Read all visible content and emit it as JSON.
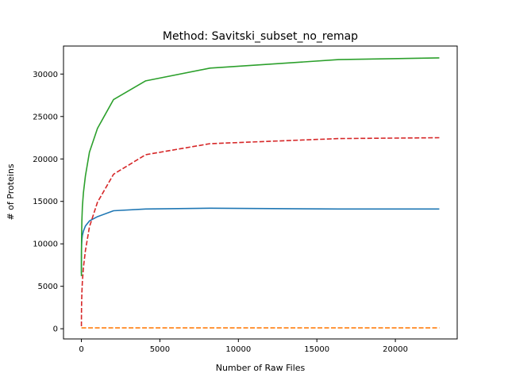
{
  "chart_data": {
    "type": "line",
    "title": "Method: Savitski_subset_no_remap",
    "xlabel": "Number of Raw Files",
    "ylabel": "# of Proteins",
    "xlim": [
      -1140,
      23940
    ],
    "ylim": [
      -1200,
      33300
    ],
    "xticks": [
      0,
      5000,
      10000,
      15000,
      20000
    ],
    "yticks": [
      0,
      5000,
      10000,
      15000,
      20000,
      25000,
      30000
    ],
    "grid": false,
    "legend": "none",
    "series": [
      {
        "color": "#1f77b4",
        "dash": "solid",
        "x": [
          1,
          2,
          4,
          8,
          16,
          32,
          64,
          128,
          256,
          512,
          1024,
          2048,
          4096,
          8192,
          16384,
          22800
        ],
        "y": [
          6500,
          7500,
          8400,
          9200,
          9900,
          10500,
          11000,
          11500,
          12100,
          12700,
          13200,
          13900,
          14100,
          14200,
          14100,
          14100
        ]
      },
      {
        "color": "#ff7f0e",
        "dash": "dashed",
        "x": [
          1,
          2,
          4,
          8,
          16,
          32,
          64,
          128,
          256,
          512,
          1024,
          2048,
          4096,
          8192,
          16384,
          22800
        ],
        "y": [
          100,
          100,
          100,
          100,
          100,
          100,
          100,
          100,
          100,
          100,
          100,
          100,
          100,
          100,
          100,
          100
        ]
      },
      {
        "color": "#2ca02c",
        "dash": "solid",
        "x": [
          1,
          2,
          4,
          8,
          16,
          32,
          64,
          128,
          256,
          512,
          1024,
          2048,
          4096,
          8192,
          16384,
          22800
        ],
        "y": [
          6200,
          7300,
          8600,
          9800,
          11200,
          12800,
          14400,
          16000,
          18000,
          20800,
          23600,
          27000,
          29200,
          30700,
          31700,
          31900
        ]
      },
      {
        "color": "#d62728",
        "dash": "dashed",
        "x": [
          1,
          2,
          4,
          8,
          16,
          32,
          64,
          128,
          256,
          512,
          1024,
          2048,
          4096,
          8192,
          16384,
          22800
        ],
        "y": [
          300,
          800,
          1500,
          2300,
          3200,
          4300,
          5600,
          7200,
          9200,
          12000,
          14900,
          18200,
          20500,
          21800,
          22400,
          22500
        ]
      }
    ]
  }
}
